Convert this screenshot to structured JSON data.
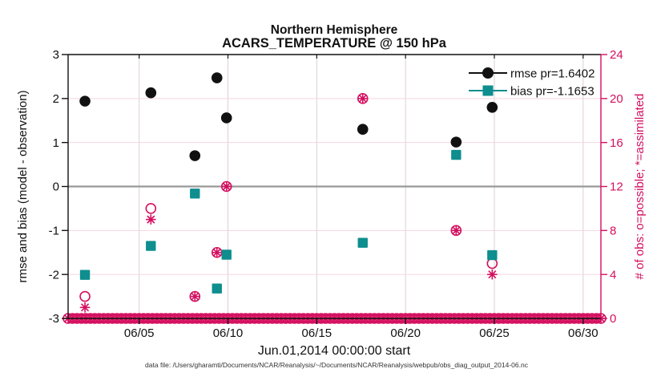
{
  "chart_data": {
    "type": "scatter",
    "title": "Northern Hemisphere",
    "subtitle": "ACARS_TEMPERATURE @ 150 hPa",
    "xlabel": "Jun.01,2014 00:00:00 start",
    "ylabel_left": "rmse and bias (model - observation)",
    "ylabel_right": "# of obs: o=possible; *=assimilated",
    "caption": "data file: /Users/gharamti/Documents/NCAR/Reanalysis/~/Documents/NCAR/Reanalysis/webpub/obs_diag_output_2014-06.nc",
    "x_axis": {
      "range_days": [
        0,
        30
      ],
      "start": "Jun.01,2014 00:00:00",
      "ticks": [
        {
          "day": 4,
          "label": "06/05"
        },
        {
          "day": 9,
          "label": "06/10"
        },
        {
          "day": 14,
          "label": "06/15"
        },
        {
          "day": 19,
          "label": "06/20"
        },
        {
          "day": 24,
          "label": "06/25"
        },
        {
          "day": 29,
          "label": "06/30"
        }
      ]
    },
    "y_axis_left": {
      "range": [
        -3,
        3
      ],
      "ticks": [
        3,
        2,
        1,
        0,
        -1,
        -2,
        -3
      ]
    },
    "y_axis_right": {
      "range": [
        0,
        24
      ],
      "ticks": [
        24,
        20,
        16,
        12,
        8,
        4,
        0
      ]
    },
    "zero_line": {
      "value": 0,
      "color": "#999999"
    },
    "legend": [
      {
        "label": "rmse pr=1.6402",
        "marker": "filled-circle",
        "color": "#111111"
      },
      {
        "label": "bias pr=-1.1653",
        "marker": "filled-square",
        "color": "#0e8e8e"
      }
    ],
    "series": {
      "rmse": {
        "color": "#111111",
        "marker": "filled-circle",
        "points": [
          {
            "day": 0.95,
            "value": 1.94
          },
          {
            "day": 4.66,
            "value": 2.13
          },
          {
            "day": 7.14,
            "value": 0.7
          },
          {
            "day": 8.38,
            "value": 2.47
          },
          {
            "day": 8.92,
            "value": 1.56
          },
          {
            "day": 16.59,
            "value": 1.3
          },
          {
            "day": 21.85,
            "value": 1.01
          },
          {
            "day": 23.88,
            "value": 1.8
          }
        ]
      },
      "bias": {
        "color": "#0e8e8e",
        "marker": "filled-square",
        "points": [
          {
            "day": 0.95,
            "value": -2.01
          },
          {
            "day": 4.66,
            "value": -1.35
          },
          {
            "day": 7.14,
            "value": -0.16
          },
          {
            "day": 8.38,
            "value": -2.32
          },
          {
            "day": 8.92,
            "value": -1.55
          },
          {
            "day": 16.59,
            "value": -1.28
          },
          {
            "day": 21.85,
            "value": 0.72
          },
          {
            "day": 23.88,
            "value": -1.56
          }
        ]
      },
      "possible": {
        "color": "#d40f5f",
        "marker": "open-circle",
        "points": [
          {
            "day": 0.95,
            "count": 2
          },
          {
            "day": 4.66,
            "count": 10
          },
          {
            "day": 7.14,
            "count": 2
          },
          {
            "day": 8.38,
            "count": 6
          },
          {
            "day": 8.92,
            "count": 12
          },
          {
            "day": 16.59,
            "count": 20
          },
          {
            "day": 21.85,
            "count": 8
          },
          {
            "day": 23.88,
            "count": 5
          }
        ]
      },
      "assimilated": {
        "color": "#d40f5f",
        "marker": "star",
        "points": [
          {
            "day": 0.95,
            "count": 1
          },
          {
            "day": 4.66,
            "count": 9
          },
          {
            "day": 7.14,
            "count": 2
          },
          {
            "day": 8.38,
            "count": 6
          },
          {
            "day": 8.92,
            "count": 12
          },
          {
            "day": 16.59,
            "count": 20
          },
          {
            "day": 21.85,
            "count": 8
          },
          {
            "day": 23.88,
            "count": 4
          }
        ]
      },
      "zero_obs_band": {
        "count": 0,
        "interval_days": 0.25,
        "range_days": [
          0,
          30
        ],
        "note": "overlapping o and * markers at zero obs for every 6-hour bin"
      }
    },
    "colors": {
      "accent_pink": "#d40f5f",
      "teal": "#0e8e8e",
      "black": "#111111",
      "grid_vertical": "#dccfd4",
      "grid_horizontal": "#f6d5e0",
      "zero_line_gray": "#999999"
    }
  }
}
